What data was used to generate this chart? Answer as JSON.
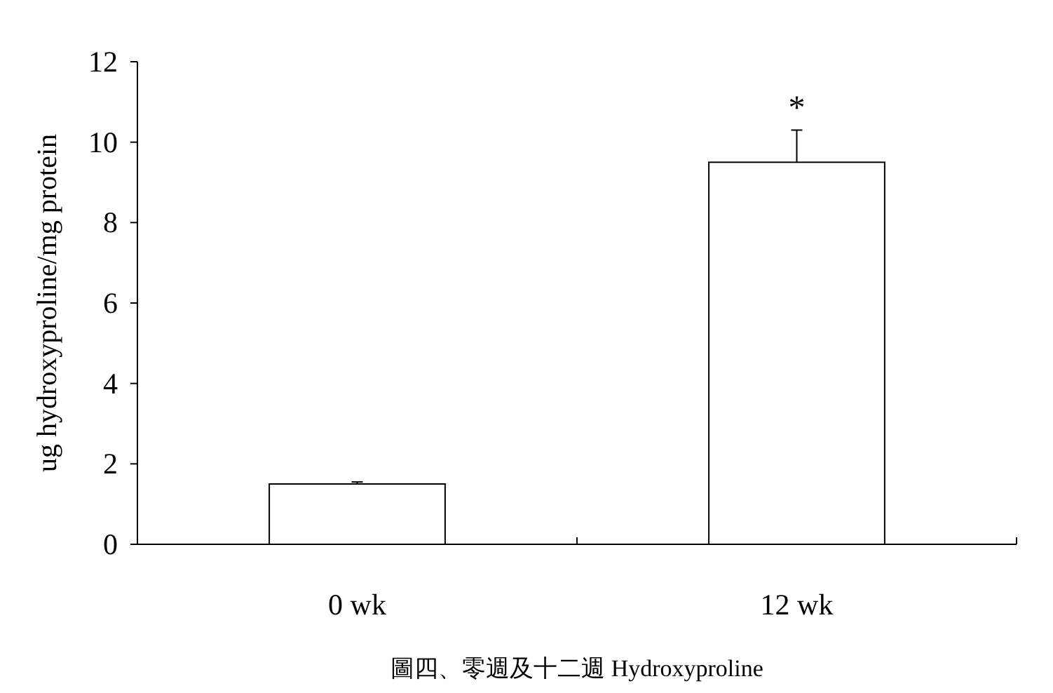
{
  "chart_data": {
    "type": "bar",
    "categories": [
      "0 wk",
      "12 wk"
    ],
    "values": [
      1.5,
      9.5
    ],
    "errors": [
      0.05,
      0.8
    ],
    "color": "#ffffff",
    "ylabel": "ug hydroxyproline/mg protein",
    "ylim": [
      0,
      12
    ],
    "yticks": [
      0,
      2,
      4,
      6,
      8,
      10,
      12
    ],
    "annotations": [
      {
        "text": "*",
        "x": "12 wk",
        "y": 10.3
      },
      "圖四、零週及十二週 Hydroxyproline"
    ],
    "grid": false
  }
}
